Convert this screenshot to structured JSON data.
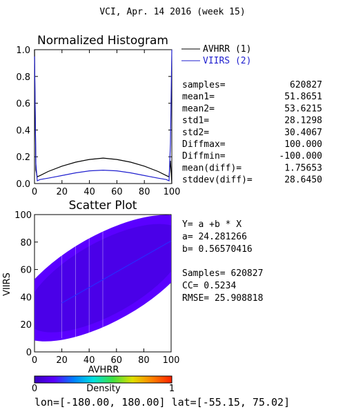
{
  "header": {
    "title": "VCI,  Apr. 14 2016 (week 15)"
  },
  "histogram": {
    "title": "Normalized Histogram",
    "legend": [
      {
        "label": "AVHRR (1)",
        "color": "#000000"
      },
      {
        "label": "VIIRS (2)",
        "color": "#1f1fcf"
      }
    ],
    "stats": [
      {
        "label": "samples=",
        "value": "620827"
      },
      {
        "label": "mean1=",
        "value": "51.8651"
      },
      {
        "label": "mean2=",
        "value": "53.6215"
      },
      {
        "label": "std1=",
        "value": "28.1298"
      },
      {
        "label": "std2=",
        "value": "30.4067"
      },
      {
        "label": "Diffmax=",
        "value": "100.000"
      },
      {
        "label": "Diffmin=",
        "value": "-100.000"
      },
      {
        "label": "mean(diff)=",
        "value": "1.75653"
      },
      {
        "label": "stddev(diff)=",
        "value": "28.6450"
      }
    ]
  },
  "scatter": {
    "title": "Scatter Plot",
    "xlabel": "AVHRR",
    "ylabel": "VIIRS",
    "regression_lines": [
      "Y= a +b * X",
      "a= 24.281266",
      "b= 0.56570416"
    ],
    "metric_lines": [
      "Samples= 620827",
      "CC=  0.5234",
      "RMSE= 25.908818"
    ]
  },
  "colorbar": {
    "label": "Density",
    "min_label": "0",
    "max_label": "1",
    "colors": [
      "#3a00c0",
      "#5a00ff",
      "#0080ff",
      "#00e0e0",
      "#40e040",
      "#e0e000",
      "#ff8000",
      "#ff2000"
    ]
  },
  "footer": {
    "coords": "lon=[-180.00, 180.00] lat=[-55.15, 75.02]"
  },
  "chart_data": [
    {
      "type": "line",
      "title": "Normalized Histogram",
      "xlim": [
        0,
        100
      ],
      "ylim": [
        0,
        1.0
      ],
      "xticks": [
        "0",
        "20",
        "40",
        "60",
        "80",
        "100"
      ],
      "yticks": [
        "0.0",
        "0.2",
        "0.4",
        "0.6",
        "0.8",
        "1.0"
      ],
      "series": [
        {
          "name": "AVHRR (1)",
          "x": [
            0,
            1,
            2,
            4,
            10,
            20,
            30,
            40,
            50,
            60,
            70,
            80,
            90,
            96,
            98,
            99,
            100
          ],
          "values": [
            1.0,
            0.1,
            0.05,
            0.06,
            0.09,
            0.13,
            0.16,
            0.18,
            0.19,
            0.18,
            0.16,
            0.13,
            0.09,
            0.06,
            0.05,
            0.17,
            0.0
          ]
        },
        {
          "name": "VIIRS (2)",
          "x": [
            0,
            1,
            2,
            4,
            10,
            20,
            30,
            40,
            50,
            60,
            70,
            80,
            90,
            96,
            98,
            99,
            100
          ],
          "values": [
            0.95,
            0.15,
            0.02,
            0.03,
            0.04,
            0.06,
            0.08,
            0.095,
            0.1,
            0.095,
            0.08,
            0.06,
            0.04,
            0.03,
            0.02,
            0.3,
            1.0
          ]
        }
      ]
    },
    {
      "type": "scatter",
      "title": "Scatter Plot",
      "xlabel": "AVHRR",
      "ylabel": "VIIRS",
      "xlim": [
        0,
        100
      ],
      "ylim": [
        0,
        100
      ],
      "xticks": [
        "0",
        "20",
        "40",
        "60",
        "80",
        "100"
      ],
      "yticks": [
        "0",
        "20",
        "40",
        "60",
        "80",
        "100"
      ],
      "regression": {
        "a": 24.281266,
        "b": 0.56570416
      },
      "samples": 620827,
      "cc": 0.5234,
      "rmse": 25.908818
    }
  ]
}
